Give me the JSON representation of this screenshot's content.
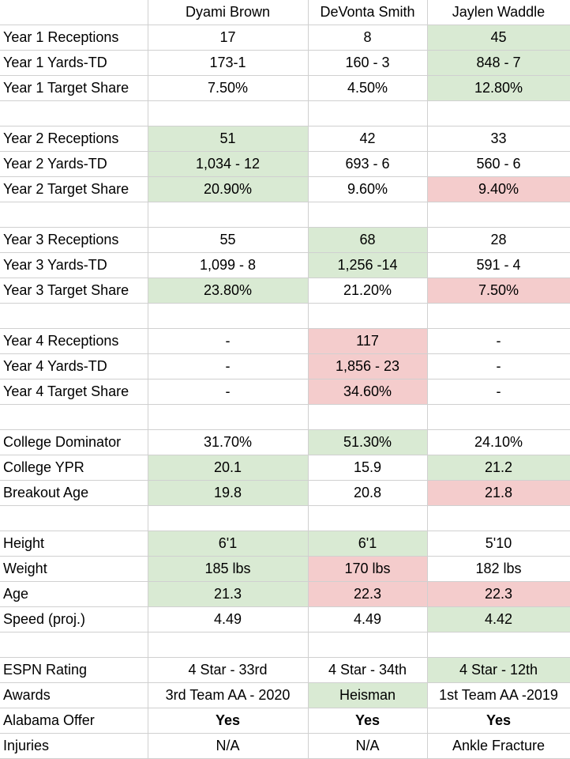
{
  "headers": [
    "",
    "Dyami Brown",
    "DeVonta Smith",
    "Jaylen Waddle"
  ],
  "colors": {
    "green": "#d9ead3",
    "red": "#f4cccc",
    "grid": "#d0d0d0"
  },
  "groups": [
    [
      [
        "Year 1 Receptions",
        "17",
        "8",
        "45"
      ],
      [
        "Year 1 Yards-TD",
        "173-1",
        "160 - 3",
        "848 - 7"
      ],
      [
        "Year 1 Target Share",
        "7.50%",
        "4.50%",
        "12.80%"
      ]
    ],
    [
      [
        "Year 2 Receptions",
        "51",
        "42",
        "33"
      ],
      [
        "Year 2 Yards-TD",
        "1,034 - 12",
        "693 - 6",
        "560 - 6"
      ],
      [
        "Year 2 Target Share",
        "20.90%",
        "9.60%",
        "9.40%"
      ]
    ],
    [
      [
        "Year 3 Receptions",
        "55",
        "68",
        "28"
      ],
      [
        "Year 3 Yards-TD",
        "1,099 - 8",
        "1,256 -14",
        "591 - 4"
      ],
      [
        "Year 3 Target Share",
        "23.80%",
        "21.20%",
        "7.50%"
      ]
    ],
    [
      [
        "Year 4 Receptions",
        "-",
        "117",
        "-"
      ],
      [
        "Year 4 Yards-TD",
        "-",
        "1,856 - 23",
        "-"
      ],
      [
        "Year 4 Target Share",
        "-",
        "34.60%",
        "-"
      ]
    ],
    [
      [
        "College Dominator",
        "31.70%",
        "51.30%",
        "24.10%"
      ],
      [
        "College YPR",
        "20.1",
        "15.9",
        "21.2"
      ],
      [
        "Breakout Age",
        "19.8",
        "20.8",
        "21.8"
      ]
    ],
    [
      [
        "Height",
        "6'1",
        "6'1",
        "5'10"
      ],
      [
        "Weight",
        "185 lbs",
        "170 lbs",
        "182 lbs"
      ],
      [
        "Age",
        "21.3",
        "22.3",
        "22.3"
      ],
      [
        "Speed (proj.)",
        "4.49",
        "4.49",
        "4.42"
      ]
    ],
    [
      [
        "ESPN Rating",
        "4 Star - 33rd",
        "4 Star - 34th",
        "4 Star - 12th"
      ],
      [
        "Awards",
        "3rd Team AA - 2020",
        "Heisman",
        "1st Team AA -2019"
      ],
      [
        "Alabama Offer",
        "Yes",
        "Yes",
        "Yes"
      ],
      [
        "Injuries",
        "N/A",
        "N/A",
        "Ankle Fracture"
      ]
    ]
  ]
}
